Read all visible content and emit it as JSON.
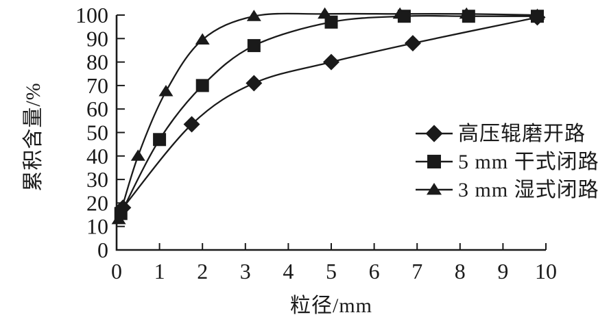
{
  "figure": {
    "background": "#ffffff",
    "ink_color": "#1a1a1a"
  },
  "chart_data": {
    "type": "line",
    "title": "",
    "xlabel": "粒径/mm",
    "ylabel": "累积含量/%",
    "xlim": [
      0,
      10
    ],
    "ylim": [
      0,
      100
    ],
    "xticks": [
      0,
      1,
      2,
      3,
      4,
      5,
      6,
      7,
      8,
      9,
      10
    ],
    "yticks": [
      0,
      10,
      20,
      30,
      40,
      50,
      60,
      70,
      80,
      90,
      100
    ],
    "grid": false,
    "legend_position": "right-middle",
    "series": [
      {
        "name": "高压辊磨开路",
        "marker": "diamond",
        "color": "#1a1a1a",
        "points": [
          [
            0.15,
            18
          ],
          [
            1.75,
            53.5
          ],
          [
            3.2,
            71
          ],
          [
            5,
            80
          ],
          [
            6.9,
            88
          ],
          [
            9.8,
            99
          ]
        ]
      },
      {
        "name": "5 mm 干式闭路",
        "marker": "square",
        "color": "#1a1a1a",
        "points": [
          [
            0.1,
            15.5
          ],
          [
            1,
            47
          ],
          [
            2,
            70
          ],
          [
            3.2,
            87
          ],
          [
            5,
            97
          ],
          [
            6.7,
            99.5
          ],
          [
            8.2,
            99.5
          ],
          [
            9.8,
            99.5
          ]
        ]
      },
      {
        "name": "3 mm 湿式闭路",
        "marker": "triangle",
        "color": "#1a1a1a",
        "points": [
          [
            0.05,
            13
          ],
          [
            0.5,
            40
          ],
          [
            1.15,
            67.5
          ],
          [
            2,
            89.5
          ],
          [
            3.2,
            99.5
          ],
          [
            4.85,
            100.5
          ],
          [
            6.6,
            100.5
          ],
          [
            8.15,
            100.5
          ],
          [
            9.8,
            100
          ]
        ]
      }
    ]
  }
}
